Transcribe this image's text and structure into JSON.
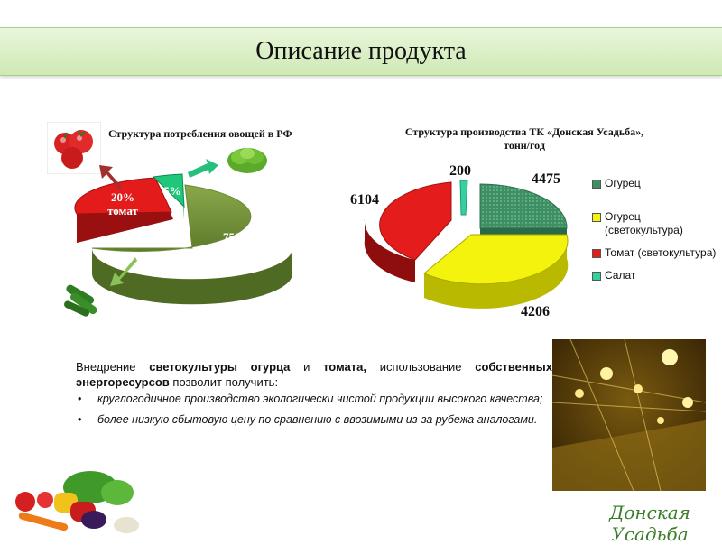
{
  "slide": {
    "title": "Описание продукта"
  },
  "consumption_chart": {
    "title": "Структура потребления овощей в РФ",
    "labels": [
      {
        "pct": "75%",
        "name": "огурец"
      },
      {
        "pct": "20%",
        "name": "томат"
      },
      {
        "pct": "5%",
        "name": ""
      }
    ]
  },
  "production_chart": {
    "title_line1": "Структура производства ТК «Донская Усадьба»,",
    "title_line2": "тонн/год",
    "legend": [
      "Огурец",
      "Огурец (светокультура)",
      "Томат (светокультура)",
      "Салат"
    ],
    "value_labels": [
      "4475",
      "4206",
      "6104",
      "200"
    ]
  },
  "chart_data": [
    {
      "type": "pie",
      "title": "Структура потребления овощей в РФ",
      "categories": [
        "огурец",
        "томат",
        ""
      ],
      "values": [
        75,
        20,
        5
      ],
      "unit": "%",
      "colors": [
        "#77933c",
        "#e51c1c",
        "#1ec77a"
      ],
      "style": "3d-exploded"
    },
    {
      "type": "pie",
      "title": "Структура производства ТК «Донская Усадьба», тонн/год",
      "categories": [
        "Огурец",
        "Огурец (светокультура)",
        "Томат (светокультура)",
        "Салат"
      ],
      "values": [
        4475,
        4206,
        6104,
        200
      ],
      "colors": [
        "#4e9a72",
        "#f2f20a",
        "#e51c1c",
        "#35d0a0"
      ],
      "legend": "right",
      "style": "3d-exploded"
    }
  ],
  "text_block": {
    "p1": "Внедрение",
    "b1": "светокультуры огурца",
    "p2": "и",
    "b2": "томата,",
    "p3": "использование",
    "b3": "собственных энергоресурсов",
    "p4": "позволит получить:",
    "bullets": [
      "круглогодичное производство экологически чистой продукции высокого качества;",
      "более низкую сбытовую цену по сравнению с ввозимыми из-за рубежа аналогами."
    ]
  },
  "logo": {
    "text": "Донская Усадьба"
  },
  "icons": {
    "tomato": "tomatoes-photo",
    "lettuce": "lettuce-photo",
    "cucumber": "cucumbers-photo",
    "vegetables": "vegetables-photo",
    "greenhouse": "greenhouse-photo"
  }
}
